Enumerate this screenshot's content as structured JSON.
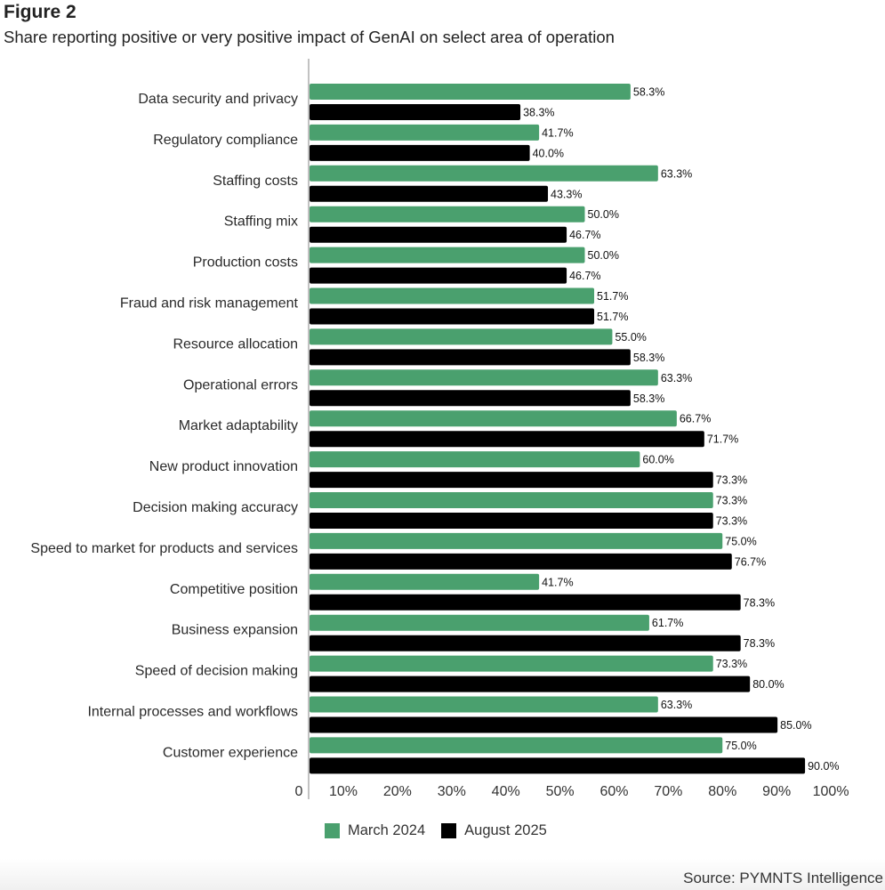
{
  "header": {
    "title": "Figure 2",
    "subtitle": "Share reporting positive or very positive impact of GenAI on select area of operation"
  },
  "source": "Source: PYMNTS Intelligence",
  "colors": {
    "march_2024": "#4aa06e",
    "august_2025": "#000000",
    "axis": "#999999"
  },
  "chart_data": {
    "type": "bar",
    "orientation": "horizontal",
    "title": "Figure 2",
    "subtitle": "Share reporting positive or very positive impact of GenAI on select area of operation",
    "xlabel": "",
    "ylabel": "",
    "xlim": [
      0,
      100
    ],
    "x_ticks": [
      "0",
      "10%",
      "20%",
      "30%",
      "40%",
      "50%",
      "60%",
      "70%",
      "80%",
      "90%",
      "100%"
    ],
    "grid": false,
    "legend_position": "bottom",
    "categories": [
      "Data security and privacy",
      "Regulatory compliance",
      "Staffing costs",
      "Staffing mix",
      "Production costs",
      "Fraud and risk management",
      "Resource allocation",
      "Operational errors",
      "Market adaptability",
      "New product innovation",
      "Decision making accuracy",
      "Speed to market for products and services",
      "Competitive position",
      "Business expansion",
      "Speed of decision making",
      "Internal processes and workflows",
      "Customer experience"
    ],
    "series": [
      {
        "name": "March 2024",
        "color": "#4aa06e",
        "values": [
          58.3,
          41.7,
          63.3,
          50.0,
          50.0,
          51.7,
          55.0,
          63.3,
          66.7,
          60.0,
          73.3,
          75.0,
          41.7,
          61.7,
          73.3,
          63.3,
          75.0
        ],
        "labels": [
          "58.3%",
          "41.7%",
          "63.3%",
          "50.0%",
          "50.0%",
          "51.7%",
          "55.0%",
          "63.3%",
          "66.7%",
          "60.0%",
          "73.3%",
          "75.0%",
          "41.7%",
          "61.7%",
          "73.3%",
          "63.3%",
          "75.0%"
        ]
      },
      {
        "name": "August 2025",
        "color": "#000000",
        "values": [
          38.3,
          40.0,
          43.3,
          46.7,
          46.7,
          51.7,
          58.3,
          58.3,
          71.7,
          73.3,
          73.3,
          76.7,
          78.3,
          78.3,
          80.0,
          85.0,
          90.0
        ],
        "labels": [
          "38.3%",
          "40.0%",
          "43.3%",
          "46.7%",
          "46.7%",
          "51.7%",
          "58.3%",
          "58.3%",
          "71.7%",
          "73.3%",
          "73.3%",
          "76.7%",
          "78.3%",
          "78.3%",
          "80.0%",
          "85.0%",
          "90.0%"
        ]
      }
    ]
  }
}
